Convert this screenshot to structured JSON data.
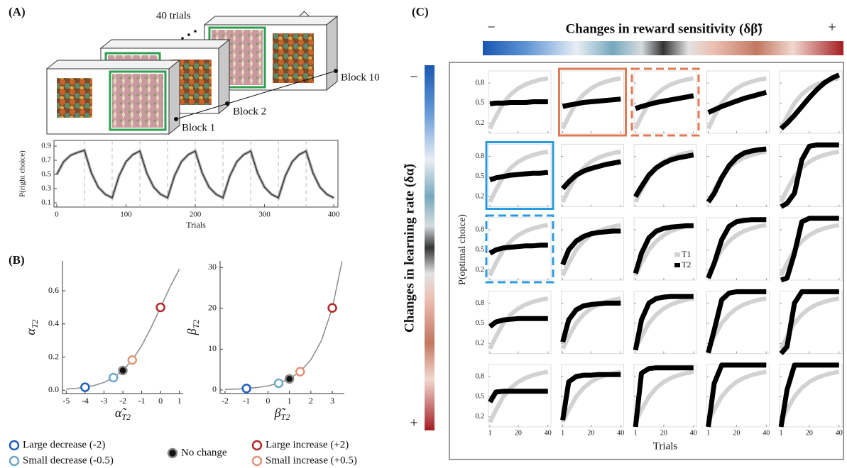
{
  "panel_labels": [
    "(A)",
    "(B)",
    "(C)"
  ],
  "diagram": {
    "trials_label": "40 trials",
    "blocks": [
      "Block 1",
      "Block 2",
      "Block 10"
    ]
  },
  "chart_data": [
    {
      "type": "line",
      "y_label": "P(right choice)",
      "x_label": "Trials",
      "color": "#333333",
      "x": [
        0,
        10,
        20,
        30,
        40,
        50,
        60,
        70,
        80,
        90,
        100,
        110,
        120,
        130,
        140,
        150,
        160,
        170,
        180,
        190,
        200,
        210,
        220,
        230,
        240,
        250,
        260,
        270,
        280,
        290,
        300,
        310,
        320,
        330,
        340,
        350,
        360,
        370,
        380,
        390,
        400
      ],
      "values": [
        0.5,
        0.68,
        0.77,
        0.81,
        0.84,
        0.52,
        0.32,
        0.22,
        0.17,
        0.48,
        0.68,
        0.78,
        0.83,
        0.52,
        0.32,
        0.22,
        0.17,
        0.48,
        0.68,
        0.78,
        0.83,
        0.52,
        0.32,
        0.22,
        0.17,
        0.48,
        0.68,
        0.78,
        0.83,
        0.52,
        0.32,
        0.22,
        0.17,
        0.48,
        0.68,
        0.78,
        0.83,
        0.52,
        0.32,
        0.22,
        0.17
      ],
      "block_boundaries": [
        40,
        80,
        120,
        160,
        200,
        240,
        280,
        320,
        360
      ],
      "xlim": [
        -4,
        406
      ],
      "xticks": [
        0,
        100,
        200,
        300,
        400
      ],
      "ylim": [
        0.04,
        0.98
      ],
      "yticks": [
        0.1,
        0.3,
        0.5,
        0.7,
        0.9
      ]
    },
    {
      "type": "curve-scatter",
      "y_label": {
        "symbol": "α",
        "subscript": "T2"
      },
      "x_label": {
        "symbol": "α̃",
        "subscript": "T2"
      },
      "curve": {
        "color": "#8a8a8a",
        "x": [
          -5,
          -4.5,
          -4,
          -3.5,
          -3,
          -2.5,
          -2,
          -1.5,
          -1,
          -0.5,
          0,
          0.5,
          1
        ],
        "values": [
          0.0067,
          0.011,
          0.018,
          0.029,
          0.047,
          0.076,
          0.119,
          0.182,
          0.269,
          0.378,
          0.5,
          0.622,
          0.731
        ]
      },
      "points": [
        {
          "x": -4,
          "y": 0.018,
          "color": "#1f5fbf"
        },
        {
          "x": -2.5,
          "y": 0.076,
          "color": "#6fa8c8"
        },
        {
          "x": -2,
          "y": 0.119,
          "color": "#111111",
          "filled": true
        },
        {
          "x": -1.5,
          "y": 0.182,
          "color": "#e0957a"
        },
        {
          "x": 0,
          "y": 0.5,
          "color": "#b22a2a"
        }
      ],
      "xlim": [
        -5.2,
        1.2
      ],
      "xticks": [
        -5,
        -4,
        -3,
        -2,
        -1,
        0,
        1
      ],
      "ylim": [
        -0.02,
        0.78
      ],
      "yticks": [
        {
          "value": 0,
          "label": "0.0"
        },
        0.2,
        0.4,
        0.6
      ]
    },
    {
      "type": "curve-scatter",
      "y_label": {
        "symbol": "β",
        "subscript": "T2"
      },
      "x_label": {
        "symbol": "β̃",
        "subscript": "T2"
      },
      "curve": {
        "color": "#8a8a8a",
        "x": [
          -2,
          -1.5,
          -1,
          -0.5,
          0,
          0.5,
          1,
          1.5,
          2,
          2.5,
          3,
          3.45
        ],
        "values": [
          0.135,
          0.223,
          0.368,
          0.607,
          1,
          1.649,
          2.718,
          4.482,
          7.389,
          12.18,
          20.09,
          31.5
        ]
      },
      "points": [
        {
          "x": -1,
          "y": 0.368,
          "color": "#1f5fbf"
        },
        {
          "x": 0.5,
          "y": 1.649,
          "color": "#6fa8c8"
        },
        {
          "x": 1,
          "y": 2.718,
          "color": "#111111",
          "filled": true
        },
        {
          "x": 1.5,
          "y": 4.482,
          "color": "#e0957a"
        },
        {
          "x": 3,
          "y": 20.09,
          "color": "#b22a2a"
        }
      ],
      "xlim": [
        -2.23,
        3.56
      ],
      "xticks": [
        -2,
        -1,
        0,
        1,
        2,
        3
      ],
      "ylim": [
        -0.87,
        31.6
      ],
      "yticks": [
        0,
        10,
        20,
        30
      ]
    },
    {
      "type": "small-multiples",
      "title": "Changes in reward sensitivity (δβ̃)",
      "row_label": "Changes in learning rate (δα̃)",
      "colorbar_ends": [
        "−",
        "+"
      ],
      "y_label": "P(optimal choice)",
      "x_label": "Trials",
      "x": [
        1,
        5,
        10,
        15,
        20,
        25,
        30,
        35,
        40
      ],
      "xlim": [
        0,
        42
      ],
      "xticks": [
        1,
        20,
        40
      ],
      "ylim": [
        0.05,
        0.98
      ],
      "yticks": [
        0.2,
        0.5,
        0.8
      ],
      "series": [
        {
          "name": "T1",
          "color": "#d2d2d2",
          "values": [
            0.12,
            0.3,
            0.5,
            0.63,
            0.72,
            0.78,
            0.82,
            0.85,
            0.87
          ]
        },
        {
          "name": "T2",
          "color": "#000000"
        }
      ],
      "cells": [
        {
          "values": [
            0.49,
            0.5,
            0.5,
            0.51,
            0.51,
            0.51,
            0.52,
            0.52,
            0.52
          ]
        },
        {
          "values": [
            0.45,
            0.47,
            0.49,
            0.51,
            0.52,
            0.53,
            0.54,
            0.55,
            0.56
          ],
          "frame": {
            "color": "#e07a55",
            "style": "solid"
          }
        },
        {
          "values": [
            0.42,
            0.45,
            0.48,
            0.51,
            0.53,
            0.55,
            0.57,
            0.59,
            0.61
          ],
          "frame": {
            "color": "#e07a55",
            "style": "dashed"
          }
        },
        {
          "values": [
            0.36,
            0.4,
            0.45,
            0.49,
            0.53,
            0.57,
            0.6,
            0.63,
            0.66
          ]
        },
        {
          "values": [
            0.12,
            0.2,
            0.32,
            0.45,
            0.58,
            0.7,
            0.8,
            0.87,
            0.92
          ]
        },
        {
          "values": [
            0.45,
            0.48,
            0.5,
            0.52,
            0.53,
            0.54,
            0.55,
            0.55,
            0.56
          ],
          "frame": {
            "color": "#2a9be0",
            "style": "solid"
          }
        },
        {
          "values": [
            0.32,
            0.42,
            0.52,
            0.58,
            0.62,
            0.65,
            0.68,
            0.7,
            0.72
          ]
        },
        {
          "values": [
            0.2,
            0.35,
            0.52,
            0.63,
            0.7,
            0.75,
            0.78,
            0.8,
            0.82
          ]
        },
        {
          "values": [
            0.12,
            0.25,
            0.48,
            0.66,
            0.78,
            0.85,
            0.88,
            0.9,
            0.91
          ]
        },
        {
          "values": [
            0.05,
            0.1,
            0.25,
            0.75,
            0.95,
            0.97,
            0.97,
            0.97,
            0.97
          ]
        },
        {
          "values": [
            0.45,
            0.5,
            0.53,
            0.54,
            0.55,
            0.56,
            0.56,
            0.57,
            0.57
          ],
          "frame": {
            "color": "#2a9be0",
            "style": "dashed"
          }
        },
        {
          "values": [
            0.28,
            0.5,
            0.63,
            0.7,
            0.74,
            0.76,
            0.77,
            0.78,
            0.78
          ]
        },
        {
          "values": [
            0.15,
            0.45,
            0.68,
            0.78,
            0.82,
            0.84,
            0.85,
            0.86,
            0.86
          ]
        },
        {
          "values": [
            0.08,
            0.3,
            0.65,
            0.85,
            0.92,
            0.94,
            0.95,
            0.95,
            0.95
          ]
        },
        {
          "values": [
            0.05,
            0.08,
            0.45,
            0.92,
            0.97,
            0.97,
            0.97,
            0.97,
            0.97
          ]
        },
        {
          "values": [
            0.45,
            0.52,
            0.55,
            0.56,
            0.57,
            0.57,
            0.57,
            0.57,
            0.57
          ]
        },
        {
          "values": [
            0.22,
            0.55,
            0.7,
            0.76,
            0.78,
            0.79,
            0.8,
            0.8,
            0.8
          ]
        },
        {
          "values": [
            0.1,
            0.55,
            0.8,
            0.87,
            0.89,
            0.9,
            0.9,
            0.9,
            0.9
          ]
        },
        {
          "values": [
            0.06,
            0.4,
            0.85,
            0.95,
            0.97,
            0.97,
            0.97,
            0.97,
            0.97
          ]
        },
        {
          "values": [
            0.05,
            0.15,
            0.8,
            0.97,
            0.97,
            0.97,
            0.97,
            0.97,
            0.97
          ]
        },
        {
          "values": [
            0.42,
            0.57,
            0.58,
            0.58,
            0.58,
            0.58,
            0.58,
            0.58,
            0.58
          ]
        },
        {
          "values": [
            0.15,
            0.72,
            0.8,
            0.82,
            0.82,
            0.83,
            0.83,
            0.83,
            0.83
          ]
        },
        {
          "values": [
            0.05,
            0.85,
            0.92,
            0.93,
            0.93,
            0.93,
            0.93,
            0.93,
            0.93
          ]
        },
        {
          "values": [
            0.05,
            0.7,
            0.97,
            0.97,
            0.97,
            0.97,
            0.97,
            0.97,
            0.97
          ]
        },
        {
          "values": [
            0.05,
            0.6,
            0.97,
            0.97,
            0.97,
            0.97,
            0.97,
            0.97,
            0.97
          ]
        }
      ]
    }
  ],
  "legend": [
    {
      "name": "Large decrease (-2)",
      "color": "#1f5fbf"
    },
    {
      "name": "Small decrease (-0.5)",
      "color": "#6fa8c8"
    },
    {
      "name": "No change",
      "color": "#111111",
      "filled": true
    },
    {
      "name": "Large increase (+2)",
      "color": "#b22a2a"
    },
    {
      "name": "Small increase (+0.5)",
      "color": "#e0957a"
    }
  ]
}
